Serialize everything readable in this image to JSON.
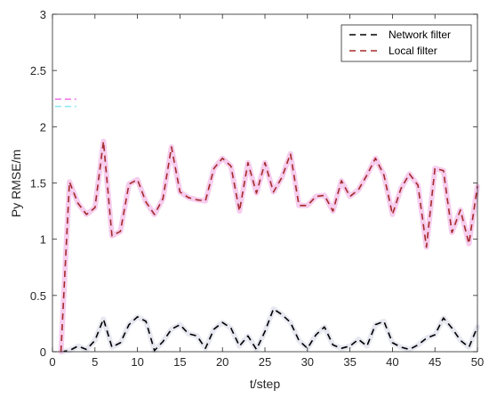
{
  "chart_data": {
    "type": "line",
    "title": "",
    "xlabel": "t/step",
    "ylabel": "Py RMSE/m",
    "xlim": [
      0,
      50
    ],
    "ylim": [
      0,
      3
    ],
    "xticks": [
      0,
      5,
      10,
      15,
      20,
      25,
      30,
      35,
      40,
      45,
      50
    ],
    "yticks": [
      0,
      0.5,
      1,
      1.5,
      2,
      2.5,
      3
    ],
    "ytick_labels": [
      "0",
      "0.5",
      "1",
      "1.5",
      "2",
      "2.5",
      "3"
    ],
    "grid": false,
    "legend_position": "top-right",
    "x": [
      1,
      2,
      3,
      4,
      5,
      6,
      7,
      8,
      9,
      10,
      11,
      12,
      13,
      14,
      15,
      16,
      17,
      18,
      19,
      20,
      21,
      22,
      23,
      24,
      25,
      26,
      27,
      28,
      29,
      30,
      31,
      32,
      33,
      34,
      35,
      36,
      37,
      38,
      39,
      40,
      41,
      42,
      43,
      44,
      45,
      46,
      47,
      48,
      49,
      50
    ],
    "series": [
      {
        "name": "Network filter",
        "color": "#000000",
        "halo_color": "#e5e5f0",
        "values": [
          0.0,
          0.01,
          0.05,
          0.02,
          0.1,
          0.29,
          0.04,
          0.08,
          0.24,
          0.31,
          0.27,
          0.01,
          0.09,
          0.2,
          0.24,
          0.16,
          0.14,
          0.03,
          0.2,
          0.26,
          0.21,
          0.05,
          0.14,
          0.02,
          0.18,
          0.38,
          0.33,
          0.26,
          0.1,
          0.03,
          0.15,
          0.22,
          0.06,
          0.03,
          0.05,
          0.11,
          0.05,
          0.24,
          0.27,
          0.08,
          0.04,
          0.02,
          0.06,
          0.12,
          0.15,
          0.3,
          0.21,
          0.1,
          0.04,
          0.22
        ]
      },
      {
        "name": "Local filter",
        "color": "#a52a2a",
        "halo_color": "#f5c8ec",
        "values": [
          0.0,
          1.51,
          1.32,
          1.22,
          1.28,
          1.87,
          1.03,
          1.07,
          1.49,
          1.53,
          1.33,
          1.22,
          1.36,
          1.82,
          1.42,
          1.37,
          1.35,
          1.34,
          1.63,
          1.72,
          1.65,
          1.25,
          1.68,
          1.41,
          1.68,
          1.42,
          1.55,
          1.76,
          1.3,
          1.3,
          1.38,
          1.39,
          1.25,
          1.52,
          1.38,
          1.44,
          1.57,
          1.72,
          1.57,
          1.22,
          1.45,
          1.58,
          1.48,
          0.93,
          1.63,
          1.61,
          1.06,
          1.26,
          0.96,
          1.47
        ]
      }
    ],
    "ghost_marks": [
      {
        "color": "#f06ae8",
        "x_range": [
          0.3,
          2.8
        ],
        "y": 2.245
      },
      {
        "color": "#8fe8f0",
        "x_range": [
          0.3,
          2.8
        ],
        "y": 2.18
      }
    ]
  }
}
